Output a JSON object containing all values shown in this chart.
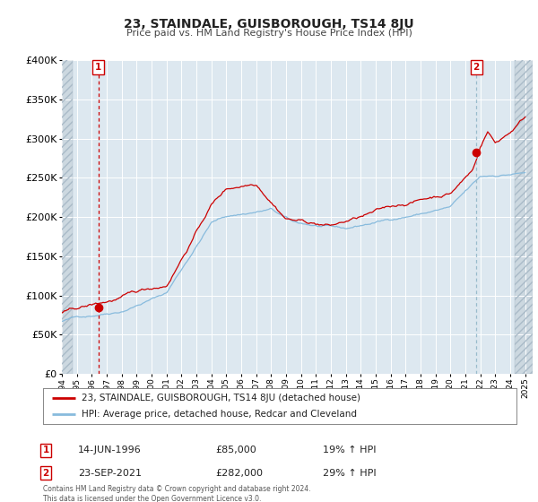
{
  "title": "23, STAINDALE, GUISBOROUGH, TS14 8JU",
  "subtitle": "Price paid vs. HM Land Registry's House Price Index (HPI)",
  "legend_line1": "23, STAINDALE, GUISBOROUGH, TS14 8JU (detached house)",
  "legend_line2": "HPI: Average price, detached house, Redcar and Cleveland",
  "annotation1_label": "1",
  "annotation1_date": "14-JUN-1996",
  "annotation1_price": "£85,000",
  "annotation1_hpi": "19% ↑ HPI",
  "annotation2_label": "2",
  "annotation2_date": "23-SEP-2021",
  "annotation2_price": "£282,000",
  "annotation2_hpi": "29% ↑ HPI",
  "sale1_year": 1996.45,
  "sale1_value": 85000,
  "sale2_year": 2021.73,
  "sale2_value": 282000,
  "price_color": "#cc0000",
  "hpi_color": "#88bbdd",
  "plot_bg_color": "#dde8f0",
  "hatch_bg_color": "#ccd8e0",
  "ylim": [
    0,
    400000
  ],
  "xlim_start": 1994.0,
  "xlim_end": 2025.5,
  "hatch_left_end": 1994.7,
  "hatch_right_start": 2024.3,
  "footnote": "Contains HM Land Registry data © Crown copyright and database right 2024.\nThis data is licensed under the Open Government Licence v3.0."
}
